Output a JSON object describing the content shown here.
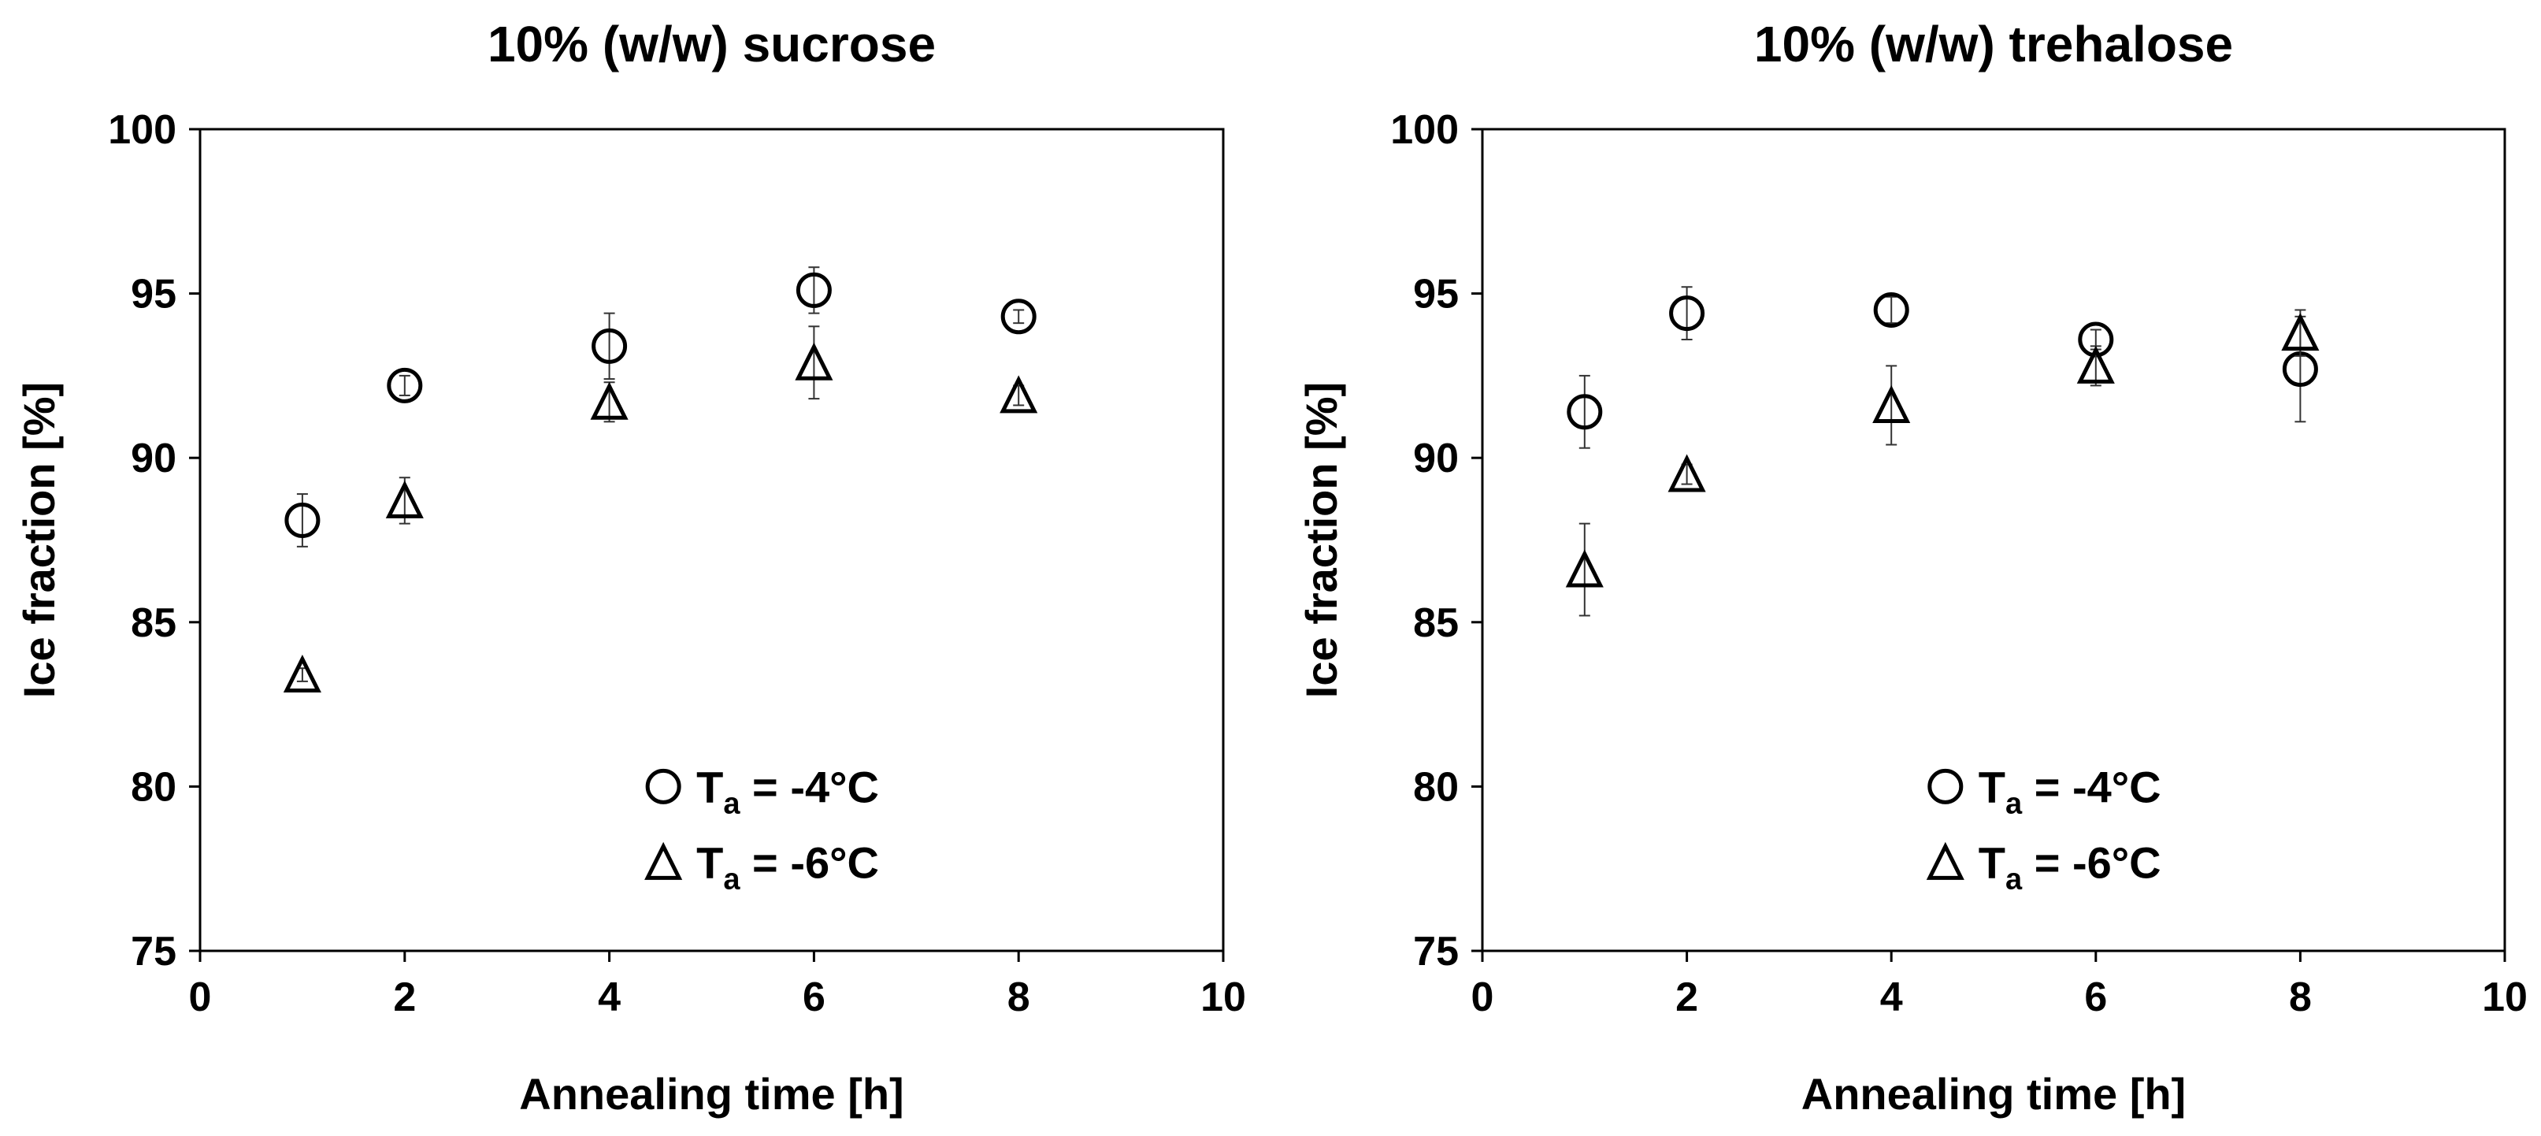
{
  "chart_data": [
    {
      "type": "scatter",
      "title": "10% (w/w) sucrose",
      "xlabel": "Annealing time [h]",
      "ylabel": "Ice fraction [%]",
      "xlim": [
        0,
        10
      ],
      "ylim": [
        75,
        100
      ],
      "xticks": [
        0,
        2,
        4,
        6,
        8,
        10
      ],
      "yticks": [
        75,
        80,
        85,
        90,
        95,
        100
      ],
      "legend_position": "bottom-right",
      "series": [
        {
          "name": "-4°C",
          "legend_prefix": "T",
          "legend_sub": "a",
          "legend_suffix": " = -4°C",
          "marker": "circle",
          "x": [
            1,
            2,
            4,
            6,
            8
          ],
          "y": [
            88.1,
            92.2,
            93.4,
            95.1,
            94.3
          ],
          "err": [
            0.8,
            0.3,
            1.0,
            0.7,
            0.2
          ]
        },
        {
          "name": "-6°C",
          "legend_prefix": "T",
          "legend_sub": "a",
          "legend_suffix": " = -6°C",
          "marker": "triangle",
          "x": [
            1,
            2,
            4,
            6,
            8
          ],
          "y": [
            83.4,
            88.7,
            91.7,
            92.9,
            91.9
          ],
          "err": [
            0.2,
            0.7,
            0.6,
            1.1,
            0.3
          ]
        }
      ]
    },
    {
      "type": "scatter",
      "title": "10% (w/w) trehalose",
      "xlabel": "Annealing time [h]",
      "ylabel": "Ice fraction [%]",
      "xlim": [
        0,
        10
      ],
      "ylim": [
        75,
        100
      ],
      "xticks": [
        0,
        2,
        4,
        6,
        8,
        10
      ],
      "yticks": [
        75,
        80,
        85,
        90,
        95,
        100
      ],
      "legend_position": "bottom-right",
      "series": [
        {
          "name": "-4°C",
          "legend_prefix": "T",
          "legend_sub": "a",
          "legend_suffix": " = -4°C",
          "marker": "circle",
          "x": [
            1,
            2,
            4,
            6,
            8
          ],
          "y": [
            91.4,
            94.4,
            94.5,
            93.6,
            92.7
          ],
          "err": [
            1.1,
            0.8,
            0.4,
            0.3,
            1.6
          ]
        },
        {
          "name": "-6°C",
          "legend_prefix": "T",
          "legend_sub": "a",
          "legend_suffix": " = -6°C",
          "marker": "triangle",
          "x": [
            1,
            2,
            4,
            6,
            8
          ],
          "y": [
            86.6,
            89.5,
            91.6,
            92.8,
            93.8
          ],
          "err": [
            1.4,
            0.3,
            1.2,
            0.6,
            0.7
          ]
        }
      ]
    }
  ]
}
